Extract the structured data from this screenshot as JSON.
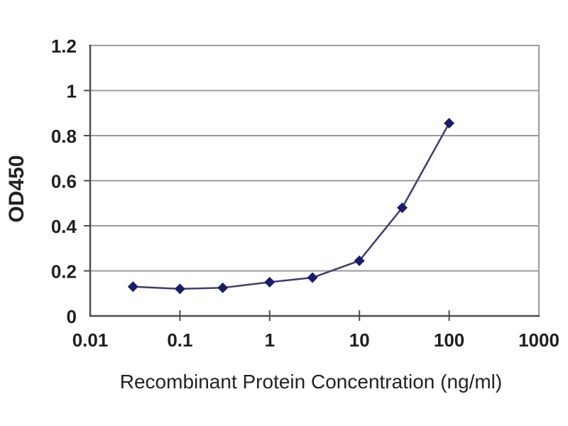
{
  "chart_data": {
    "type": "line",
    "xlabel": "Recombinant Protein Concentration (ng/ml)",
    "ylabel": "OD450",
    "x_scale": "log",
    "x": [
      0.03,
      0.1,
      0.3,
      1,
      3,
      10,
      30,
      100
    ],
    "series": [
      {
        "name": "OD450",
        "values": [
          0.13,
          0.12,
          0.125,
          0.15,
          0.17,
          0.245,
          0.48,
          0.855
        ],
        "marker": "diamond"
      }
    ],
    "xlim": [
      0.01,
      1000
    ],
    "ylim": [
      0,
      1.2
    ],
    "x_ticks": [
      0.01,
      0.1,
      1,
      10,
      100,
      1000
    ],
    "x_tick_labels": [
      "0.01",
      "0.1",
      "1",
      "10",
      "100",
      "1000"
    ],
    "y_ticks": [
      0,
      0.2,
      0.4,
      0.6,
      0.8,
      1,
      1.2
    ],
    "y_tick_labels": [
      "0",
      "0.2",
      "0.4",
      "0.6",
      "0.8",
      "1",
      "1.2"
    ],
    "grid": "horizontal",
    "legend": "none",
    "colors": {
      "background": "#ffffff",
      "grid": "#9b9b9b",
      "border": "#9b9b9b",
      "axis": "#4d4d4d",
      "line": "#3d3d6b",
      "marker": "#1c1c66",
      "text": "#1f1f1f"
    }
  }
}
